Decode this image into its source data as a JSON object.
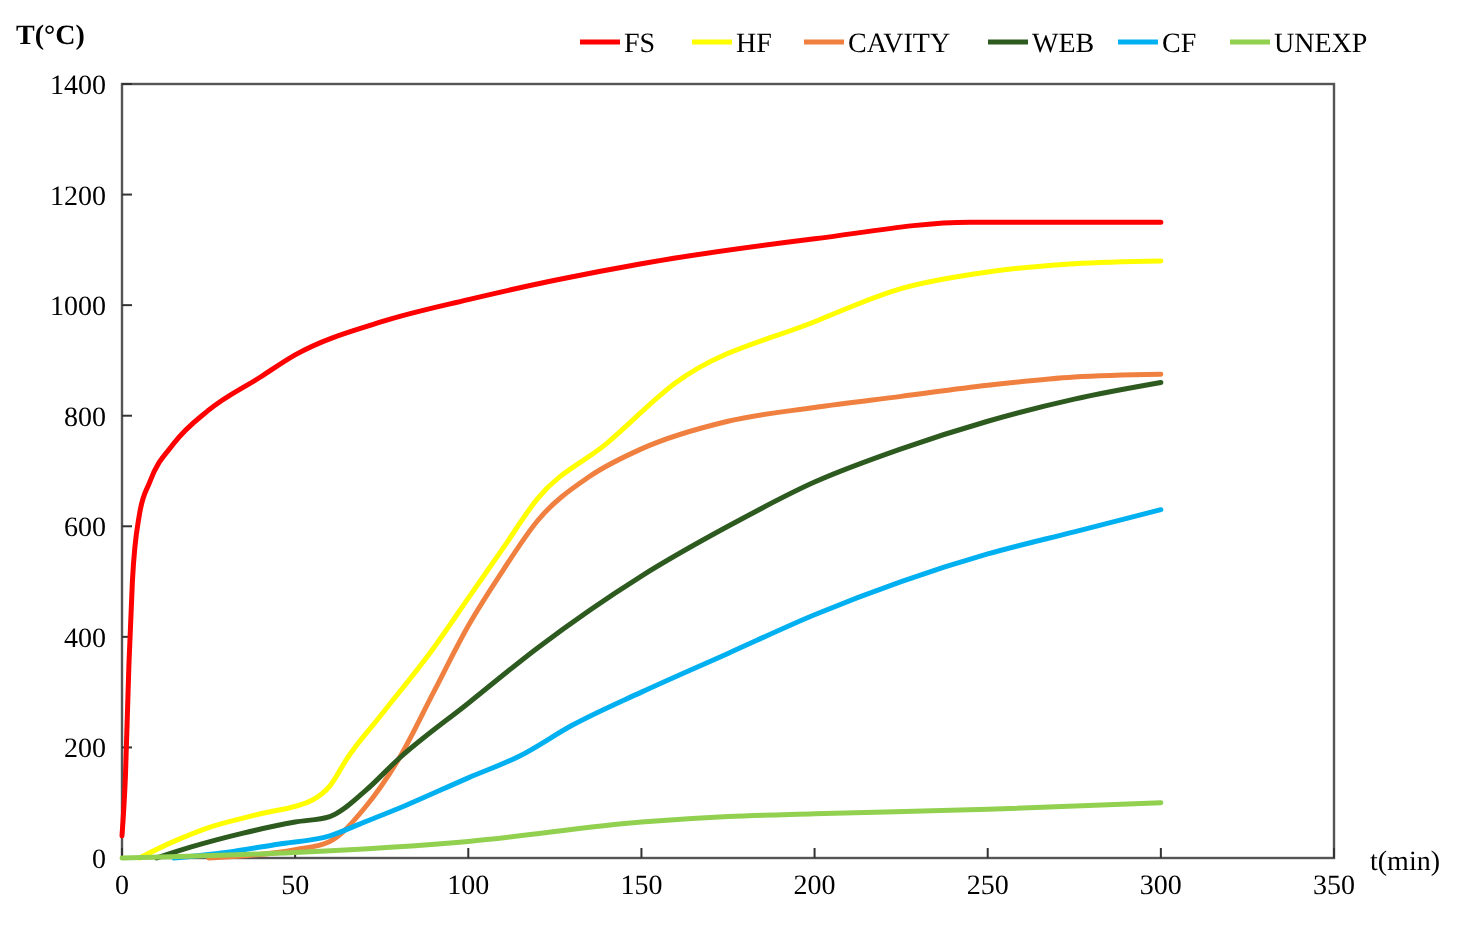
{
  "chart_data": {
    "type": "line",
    "ylabel": "T(°C)",
    "xlabel": "t(min)",
    "xlim": [
      0,
      350
    ],
    "ylim": [
      0,
      1400
    ],
    "xticks": [
      0,
      50,
      100,
      150,
      200,
      250,
      300,
      350
    ],
    "yticks": [
      0,
      200,
      400,
      600,
      800,
      1000,
      1200,
      1400
    ],
    "grid": false,
    "legend": "top",
    "marker": "none",
    "line_style": "solid",
    "series": [
      {
        "name": "FS",
        "color": "#ff0000",
        "x": [
          0,
          1,
          2,
          3,
          5,
          8,
          15,
          25,
          40,
          50,
          75,
          100,
          125,
          150,
          200,
          245,
          300
        ],
        "values": [
          40,
          150,
          350,
          500,
          620,
          680,
          750,
          810,
          870,
          910,
          970,
          1010,
          1045,
          1075,
          1120,
          1150,
          1150
        ]
      },
      {
        "name": "HF",
        "color": "#ffff00",
        "x": [
          5,
          15,
          25,
          40,
          55,
          60,
          65,
          75,
          90,
          100,
          110,
          120,
          140,
          160,
          200,
          225,
          250,
          275,
          300
        ],
        "values": [
          0,
          30,
          55,
          80,
          105,
          130,
          180,
          260,
          380,
          470,
          560,
          650,
          750,
          860,
          970,
          1030,
          1060,
          1075,
          1080
        ]
      },
      {
        "name": "CAVITY",
        "color": "#f08040",
        "x": [
          25,
          50,
          60,
          70,
          80,
          90,
          100,
          110,
          120,
          135,
          150,
          175,
          200,
          225,
          250,
          275,
          300
        ],
        "values": [
          0,
          15,
          30,
          90,
          180,
          300,
          420,
          520,
          610,
          690,
          740,
          790,
          815,
          835,
          855,
          870,
          875
        ]
      },
      {
        "name": "WEB",
        "color": "#2d5a1e",
        "x": [
          10,
          20,
          35,
          50,
          60,
          70,
          80,
          100,
          120,
          150,
          175,
          200,
          225,
          250,
          275,
          300
        ],
        "values": [
          0,
          20,
          45,
          65,
          75,
          120,
          180,
          280,
          380,
          510,
          600,
          680,
          740,
          790,
          830,
          860
        ]
      },
      {
        "name": "CF",
        "color": "#00b0f0",
        "x": [
          15,
          30,
          45,
          60,
          70,
          80,
          100,
          115,
          130,
          150,
          175,
          200,
          225,
          250,
          275,
          300
        ],
        "values": [
          0,
          10,
          25,
          40,
          65,
          90,
          145,
          185,
          240,
          300,
          370,
          440,
          500,
          550,
          590,
          630
        ]
      },
      {
        "name": "UNEXP",
        "color": "#92d050",
        "x": [
          0,
          50,
          100,
          150,
          175,
          200,
          250,
          300
        ],
        "values": [
          0,
          10,
          30,
          65,
          75,
          80,
          88,
          100
        ]
      }
    ]
  }
}
